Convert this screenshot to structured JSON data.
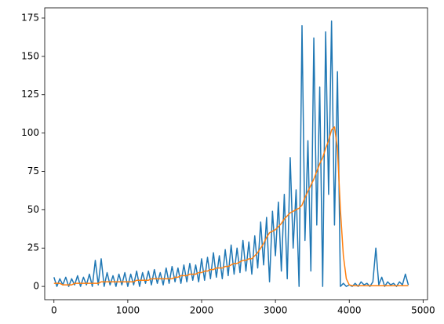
{
  "chart_data": {
    "type": "line",
    "x": [
      0,
      40,
      80,
      120,
      160,
      200,
      240,
      280,
      320,
      360,
      400,
      440,
      480,
      520,
      560,
      600,
      640,
      680,
      720,
      760,
      800,
      840,
      880,
      920,
      960,
      1000,
      1040,
      1080,
      1120,
      1160,
      1200,
      1240,
      1280,
      1320,
      1360,
      1400,
      1440,
      1480,
      1520,
      1560,
      1600,
      1640,
      1680,
      1720,
      1760,
      1800,
      1840,
      1880,
      1920,
      1960,
      2000,
      2040,
      2080,
      2120,
      2160,
      2200,
      2240,
      2280,
      2320,
      2360,
      2400,
      2440,
      2480,
      2520,
      2560,
      2600,
      2640,
      2680,
      2720,
      2760,
      2800,
      2840,
      2880,
      2920,
      2960,
      3000,
      3040,
      3080,
      3120,
      3160,
      3200,
      3240,
      3280,
      3320,
      3360,
      3400,
      3440,
      3480,
      3520,
      3560,
      3600,
      3640,
      3680,
      3720,
      3760,
      3800,
      3840,
      3880,
      3920,
      3960,
      4000,
      4040,
      4080,
      4120,
      4160,
      4200,
      4240,
      4280,
      4320,
      4360,
      4400,
      4440,
      4480,
      4520,
      4560,
      4600,
      4640,
      4680,
      4720,
      4760,
      4800
    ],
    "series": [
      {
        "color": "#1f77b4",
        "values": [
          6,
          0,
          5,
          1,
          6,
          0,
          5,
          1,
          7,
          0,
          6,
          1,
          8,
          0,
          17,
          1,
          18,
          0,
          9,
          1,
          7,
          0,
          8,
          1,
          9,
          0,
          8,
          1,
          10,
          0,
          9,
          2,
          10,
          1,
          11,
          2,
          9,
          1,
          12,
          2,
          13,
          3,
          12,
          2,
          14,
          3,
          15,
          4,
          14,
          3,
          18,
          4,
          19,
          5,
          22,
          6,
          20,
          5,
          24,
          7,
          27,
          8,
          25,
          9,
          30,
          10,
          29,
          8,
          33,
          12,
          42,
          14,
          45,
          3,
          49,
          20,
          55,
          10,
          60,
          5,
          84,
          25,
          63,
          0,
          170,
          30,
          95,
          10,
          162,
          40,
          130,
          0,
          166,
          60,
          173,
          40,
          140,
          0,
          2,
          0,
          1,
          0,
          2,
          0,
          3,
          1,
          2,
          0,
          3,
          25,
          1,
          6,
          0,
          3,
          1,
          2,
          0,
          3,
          1,
          8,
          1
        ]
      },
      {
        "color": "#ff7f0e",
        "values": [
          2,
          2,
          2,
          1,
          1,
          1,
          1,
          2,
          2,
          2,
          2,
          2,
          2,
          2,
          2,
          2,
          3,
          3,
          3,
          3,
          3,
          3,
          3,
          3,
          3,
          3,
          3,
          3,
          4,
          4,
          4,
          4,
          4,
          5,
          5,
          5,
          5,
          5,
          5,
          5,
          5,
          6,
          6,
          7,
          7,
          7,
          8,
          8,
          8,
          9,
          9,
          10,
          10,
          11,
          11,
          12,
          12,
          12,
          13,
          13,
          14,
          15,
          15,
          16,
          17,
          17,
          18,
          18,
          20,
          22,
          25,
          28,
          32,
          35,
          36,
          37,
          39,
          41,
          44,
          46,
          48,
          49,
          50,
          51,
          53,
          58,
          62,
          66,
          70,
          75,
          80,
          84,
          90,
          95,
          102,
          104,
          90,
          50,
          20,
          5,
          1,
          0.5,
          0.5,
          0.5,
          0.5,
          0.5,
          0.5,
          0.5,
          0.5,
          0.5,
          0.5,
          0.5,
          0.5,
          0.5,
          0.5,
          0.5,
          0.5,
          0.5,
          0.5,
          0.5,
          0.5
        ]
      }
    ],
    "xlim": [
      -125,
      5060
    ],
    "xticks": [
      0,
      1000,
      2000,
      3000,
      4000,
      5000
    ],
    "ylim": [
      -8.65,
      181.65
    ],
    "yticks": [
      0,
      25,
      50,
      75,
      100,
      125,
      150,
      175
    ]
  }
}
